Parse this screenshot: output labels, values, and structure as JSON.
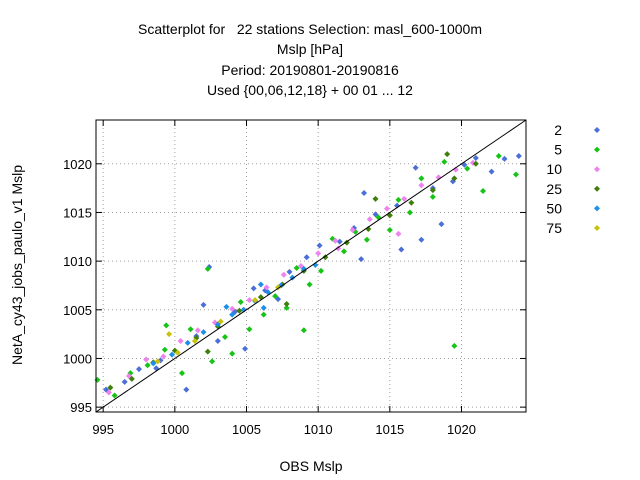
{
  "chart_data": {
    "type": "scatter",
    "title_lines": [
      "Scatterplot for   22 stations Selection: masl_600-1000m",
      "Mslp [hPa]",
      "Period: 20190801-20190816",
      "Used {00,06,12,18} + 00 01 ... 12"
    ],
    "xlabel": "OBS Mslp",
    "ylabel": "NetA_cy43_jobs_paulo_v1 Mslp",
    "xlim": [
      994.5,
      1024.5
    ],
    "ylim": [
      994.5,
      1024.5
    ],
    "xticks": [
      995,
      1000,
      1005,
      1010,
      1015,
      1020
    ],
    "yticks": [
      995,
      1000,
      1005,
      1010,
      1015,
      1020
    ],
    "grid": true,
    "diagonal_line": true,
    "legend_position": "right",
    "series": [
      {
        "name": "2",
        "color": "#4a6fd8"
      },
      {
        "name": "5",
        "color": "#16c416"
      },
      {
        "name": "10",
        "color": "#ee82ee"
      },
      {
        "name": "25",
        "color": "#3f7e0a"
      },
      {
        "name": "50",
        "color": "#1e8fe8"
      },
      {
        "name": "75",
        "color": "#c8c20a"
      }
    ],
    "points": {
      "2": [
        [
          995.2,
          996.8
        ],
        [
          996.5,
          997.6
        ],
        [
          997.5,
          998.9
        ],
        [
          999.0,
          999.8
        ],
        [
          1001.5,
          1002.3
        ],
        [
          1002.0,
          1005.5
        ],
        [
          1002.4,
          1009.4
        ],
        [
          1003.0,
          1001.8
        ],
        [
          1004.2,
          1004.8
        ],
        [
          1005.5,
          1007.2
        ],
        [
          1006.3,
          1007.0
        ],
        [
          1007.2,
          1006.1
        ],
        [
          1008.0,
          1008.9
        ],
        [
          1009.2,
          1010.4
        ],
        [
          1010.1,
          1011.6
        ],
        [
          1011.5,
          1012.0
        ],
        [
          1012.5,
          1013.4
        ],
        [
          1013.0,
          1010.2
        ],
        [
          1014.0,
          1014.8
        ],
        [
          1015.5,
          1015.7
        ],
        [
          1015.8,
          1011.2
        ],
        [
          1016.8,
          1019.6
        ],
        [
          1017.2,
          1012.2
        ],
        [
          1018.0,
          1017.5
        ],
        [
          1018.6,
          1013.8
        ],
        [
          1019.4,
          1018.2
        ],
        [
          1020.2,
          1019.9
        ],
        [
          1021.0,
          1020.6
        ],
        [
          1022.1,
          1019.2
        ],
        [
          1023.0,
          1020.5
        ],
        [
          1024.0,
          1020.8
        ],
        [
          1000.8,
          996.8
        ],
        [
          1004.9,
          1001.0
        ],
        [
          998.7,
          999.0
        ],
        [
          1013.2,
          1017.0
        ]
      ],
      "5": [
        [
          994.6,
          997.8
        ],
        [
          995.8,
          996.2
        ],
        [
          996.9,
          998.5
        ],
        [
          998.1,
          999.3
        ],
        [
          999.3,
          1000.9
        ],
        [
          1000.5,
          998.5
        ],
        [
          1001.1,
          1003.0
        ],
        [
          1002.6,
          999.7
        ],
        [
          1003.5,
          1002.2
        ],
        [
          1004.0,
          1000.5
        ],
        [
          1004.6,
          1005.8
        ],
        [
          1005.2,
          1003.0
        ],
        [
          1006.2,
          1004.5
        ],
        [
          1007.0,
          1006.4
        ],
        [
          1007.8,
          1005.2
        ],
        [
          1008.5,
          1009.3
        ],
        [
          1009.4,
          1007.6
        ],
        [
          1010.2,
          1009.0
        ],
        [
          1011.0,
          1012.3
        ],
        [
          1011.8,
          1011.0
        ],
        [
          1012.6,
          1013.0
        ],
        [
          1013.4,
          1012.2
        ],
        [
          1014.2,
          1014.5
        ],
        [
          1015.0,
          1013.2
        ],
        [
          1015.6,
          1016.3
        ],
        [
          1016.4,
          1015.0
        ],
        [
          1017.2,
          1018.5
        ],
        [
          1018.0,
          1016.6
        ],
        [
          1018.8,
          1020.2
        ],
        [
          1019.5,
          1001.3
        ],
        [
          1020.4,
          1019.5
        ],
        [
          1021.5,
          1017.2
        ],
        [
          1022.6,
          1020.8
        ],
        [
          1023.8,
          1018.9
        ],
        [
          1002.3,
          1009.2
        ],
        [
          1009.0,
          1002.9
        ],
        [
          999.4,
          1003.4
        ]
      ],
      "10": [
        [
          995.4,
          996.5
        ],
        [
          996.8,
          998.2
        ],
        [
          998.0,
          999.9
        ],
        [
          999.2,
          1000.2
        ],
        [
          1000.4,
          1001.8
        ],
        [
          1001.6,
          1002.9
        ],
        [
          1002.8,
          1003.7
        ],
        [
          1004.0,
          1005.1
        ],
        [
          1005.2,
          1006.0
        ],
        [
          1006.4,
          1007.3
        ],
        [
          1007.6,
          1008.6
        ],
        [
          1008.8,
          1009.5
        ],
        [
          1010.0,
          1010.8
        ],
        [
          1011.2,
          1012.1
        ],
        [
          1012.4,
          1013.2
        ],
        [
          1013.6,
          1014.3
        ],
        [
          1014.8,
          1015.4
        ],
        [
          1016.0,
          1016.4
        ],
        [
          1017.2,
          1017.8
        ],
        [
          1018.4,
          1018.6
        ],
        [
          1019.6,
          1019.4
        ],
        [
          1020.8,
          1020.1
        ],
        [
          1015.6,
          1012.8
        ],
        [
          1011.4,
          1011.3
        ]
      ],
      "25": [
        [
          995.5,
          997.0
        ],
        [
          997.0,
          997.9
        ],
        [
          998.5,
          999.6
        ],
        [
          1000.0,
          1000.8
        ],
        [
          1001.5,
          1002.1
        ],
        [
          1003.0,
          1003.3
        ],
        [
          1004.5,
          1004.9
        ],
        [
          1006.0,
          1006.3
        ],
        [
          1007.5,
          1007.6
        ],
        [
          1009.0,
          1009.0
        ],
        [
          1010.5,
          1010.4
        ],
        [
          1012.0,
          1011.9
        ],
        [
          1013.5,
          1013.3
        ],
        [
          1015.0,
          1014.7
        ],
        [
          1016.5,
          1016.0
        ],
        [
          1018.0,
          1017.3
        ],
        [
          1019.5,
          1018.5
        ],
        [
          1021.0,
          1020.0
        ],
        [
          1002.3,
          1000.7
        ],
        [
          1007.8,
          1005.6
        ],
        [
          1014.0,
          1016.4
        ],
        [
          1019.0,
          1021.0
        ]
      ],
      "50": [
        [
          998.5,
          999.5
        ],
        [
          999.8,
          1000.4
        ],
        [
          1000.9,
          1001.6
        ],
        [
          1002.0,
          1002.7
        ],
        [
          1003.0,
          1003.5
        ],
        [
          1004.0,
          1004.5
        ],
        [
          1004.8,
          1005.0
        ],
        [
          1005.6,
          1005.9
        ],
        [
          1006.5,
          1006.8
        ],
        [
          1007.4,
          1007.5
        ],
        [
          1008.2,
          1008.3
        ],
        [
          1009.0,
          1009.2
        ],
        [
          1009.8,
          1009.6
        ],
        [
          1003.6,
          1005.3
        ],
        [
          1006.2,
          1005.2
        ],
        [
          1006.0,
          1007.6
        ]
      ],
      "75": [
        [
          998.8,
          999.7
        ],
        [
          1000.2,
          1000.6
        ],
        [
          1001.4,
          1001.8
        ],
        [
          1003.2,
          1003.8
        ],
        [
          1005.6,
          1006.0
        ],
        [
          999.6,
          1002.5
        ],
        [
          1007.2,
          1007.3
        ]
      ]
    }
  }
}
